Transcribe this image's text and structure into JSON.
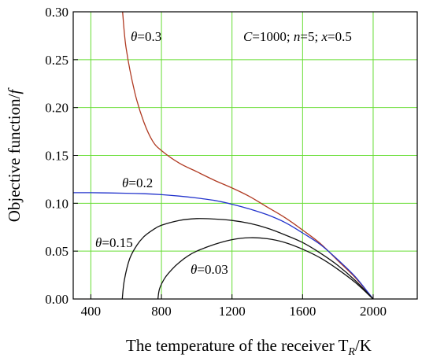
{
  "chart_data": {
    "type": "line",
    "xlabel": "The temperature of the receiver T",
    "xlabel_sub": "R",
    "xlabel_unit": "/K",
    "ylabel": "Objective function/",
    "ylabel_var": "f",
    "xlim": [
      300,
      2250
    ],
    "ylim": [
      0,
      0.3
    ],
    "xticks": [
      400,
      800,
      1200,
      1600,
      2000
    ],
    "xtick_labels": [
      "400",
      "800",
      "1200",
      "1600",
      "2000"
    ],
    "yticks": [
      0.0,
      0.05,
      0.1,
      0.15,
      0.2,
      0.25,
      0.3
    ],
    "ytick_labels": [
      "0.00",
      "0.05",
      "0.10",
      "0.15",
      "0.20",
      "0.25",
      "0.30"
    ],
    "grid": true,
    "grid_color": "#66dd33",
    "annotation": {
      "c_var": "C",
      "c_value": "=1000; ",
      "n_var": "n",
      "n_value": "=5; ",
      "x_var": "x",
      "x_value": "=0.5"
    },
    "series": [
      {
        "label_sym": "θ",
        "label_val": "=0.3",
        "color": "#b03a22",
        "x": [
          580,
          600,
          650,
          700,
          750,
          800,
          900,
          1000,
          1100,
          1200,
          1300,
          1400,
          1500,
          1600,
          1700,
          1800,
          1900,
          2000
        ],
        "y": [
          0.3,
          0.262,
          0.215,
          0.185,
          0.165,
          0.155,
          0.142,
          0.133,
          0.124,
          0.116,
          0.107,
          0.096,
          0.085,
          0.072,
          0.058,
          0.04,
          0.022,
          0.0
        ]
      },
      {
        "label_sym": "θ",
        "label_val": "=0.2",
        "color": "#2233cc",
        "x": [
          300,
          400,
          500,
          600,
          700,
          800,
          900,
          1000,
          1100,
          1200,
          1300,
          1400,
          1500,
          1600,
          1700,
          1800,
          1900,
          2000
        ],
        "y": [
          0.111,
          0.111,
          0.1108,
          0.1105,
          0.11,
          0.109,
          0.1075,
          0.1055,
          0.103,
          0.099,
          0.094,
          0.088,
          0.08,
          0.069,
          0.057,
          0.041,
          0.023,
          0.0
        ]
      },
      {
        "label_sym": "θ",
        "label_val": "=0.15",
        "color": "#111111",
        "x": [
          578,
          590,
          620,
          660,
          700,
          750,
          800,
          900,
          1000,
          1100,
          1200,
          1300,
          1400,
          1500,
          1600,
          1700,
          1800,
          1900,
          2000
        ],
        "y": [
          0.0,
          0.02,
          0.042,
          0.056,
          0.065,
          0.072,
          0.077,
          0.082,
          0.084,
          0.0835,
          0.082,
          0.079,
          0.074,
          0.067,
          0.059,
          0.048,
          0.035,
          0.019,
          0.0
        ]
      },
      {
        "label_sym": "θ",
        "label_val": "=0.03",
        "color": "#111111",
        "x": [
          780,
          790,
          820,
          860,
          900,
          950,
          1000,
          1100,
          1200,
          1300,
          1400,
          1500,
          1600,
          1700,
          1800,
          1900,
          2000
        ],
        "y": [
          0.0,
          0.011,
          0.022,
          0.031,
          0.038,
          0.045,
          0.05,
          0.057,
          0.062,
          0.064,
          0.063,
          0.059,
          0.052,
          0.043,
          0.031,
          0.017,
          0.0
        ]
      }
    ]
  }
}
